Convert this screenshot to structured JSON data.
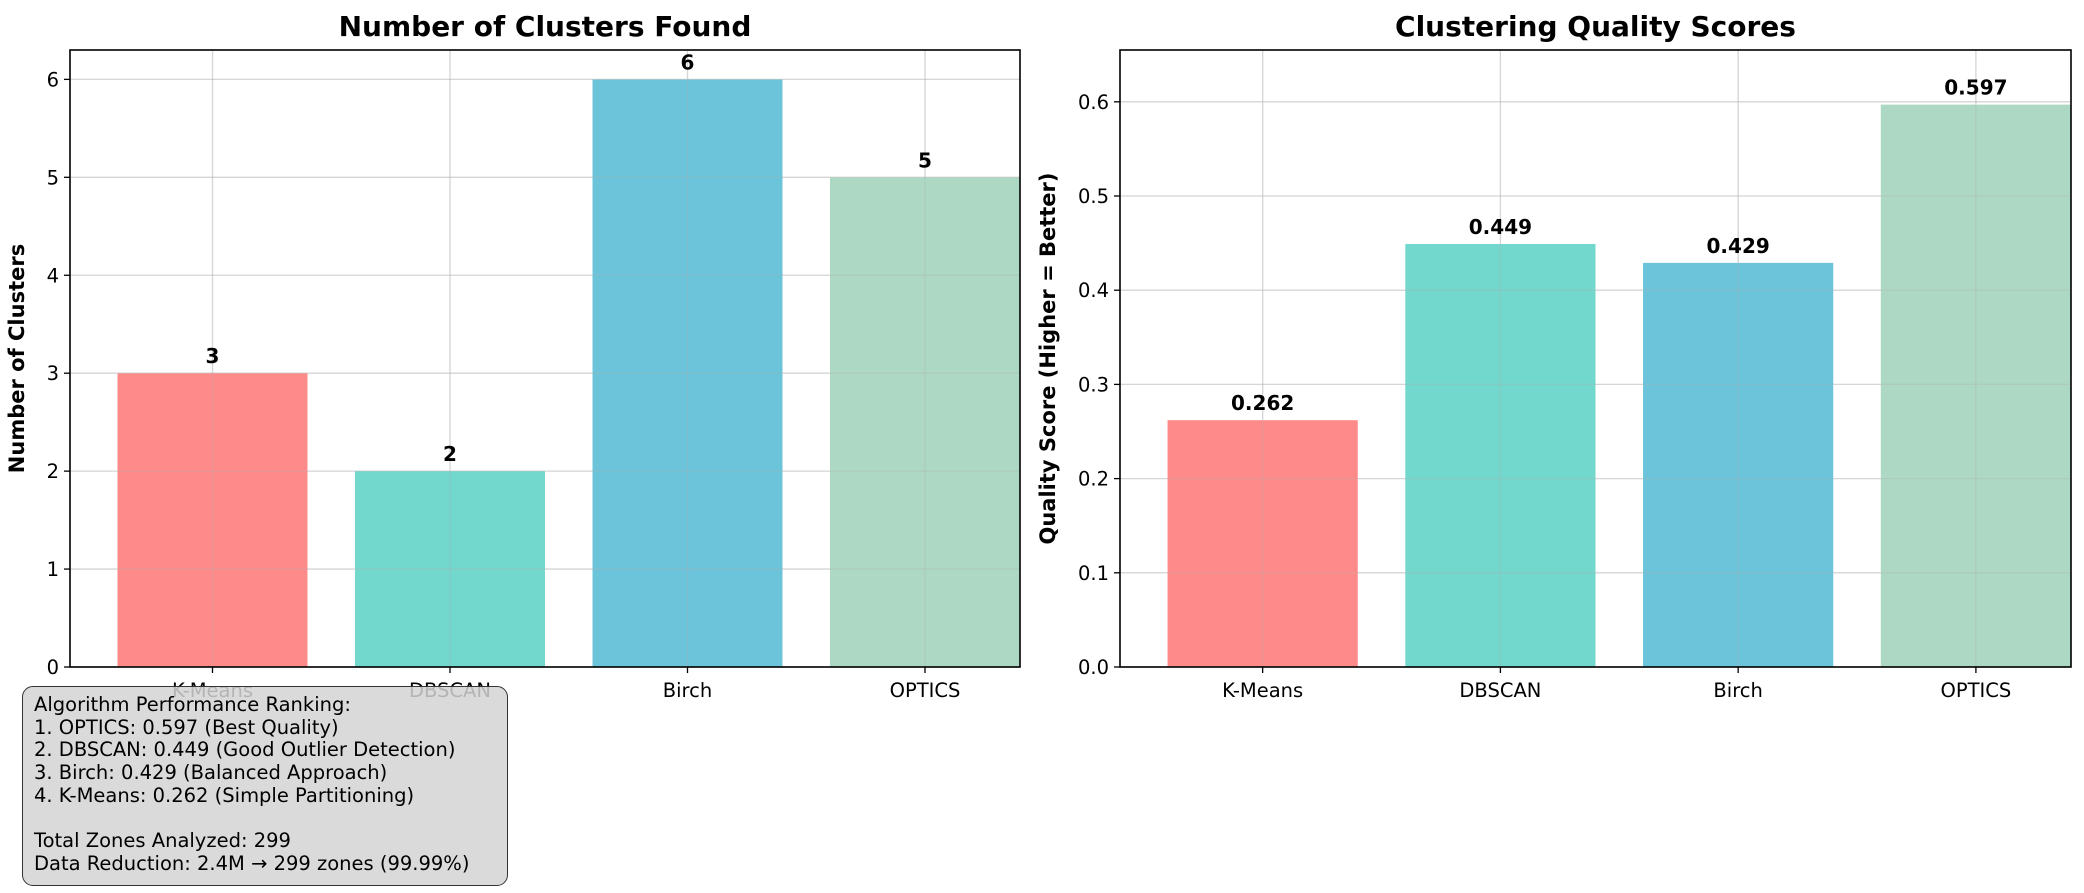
{
  "chart_data": [
    {
      "type": "bar",
      "title": "Number of Clusters Found",
      "xlabel": "",
      "ylabel": "Number of Clusters",
      "categories": [
        "K-Means",
        "DBSCAN",
        "Birch",
        "OPTICS"
      ],
      "values": [
        3,
        2,
        6,
        5
      ],
      "value_labels": [
        "3",
        "2",
        "6",
        "5"
      ],
      "colors": [
        "#ff8a8a",
        "#72d7cd",
        "#6bc4da",
        "#add8c3"
      ],
      "yticks": [
        "0",
        "1",
        "2",
        "3",
        "4",
        "5",
        "6"
      ],
      "ylim": [
        0,
        6.3
      ],
      "grid": true
    },
    {
      "type": "bar",
      "title": "Clustering Quality Scores",
      "xlabel": "",
      "ylabel": "Quality Score (Higher = Better)",
      "categories": [
        "K-Means",
        "DBSCAN",
        "Birch",
        "OPTICS"
      ],
      "values": [
        0.262,
        0.449,
        0.429,
        0.597
      ],
      "value_labels": [
        "0.262",
        "0.449",
        "0.429",
        "0.597"
      ],
      "colors": [
        "#ff8a8a",
        "#72d7cd",
        "#6bc4da",
        "#add8c3"
      ],
      "yticks": [
        "0.0",
        "0.1",
        "0.2",
        "0.3",
        "0.4",
        "0.5",
        "0.6"
      ],
      "ylim": [
        0,
        0.655
      ],
      "grid": true
    }
  ],
  "ranking_box": {
    "lines": [
      "Algorithm Performance Ranking:",
      "1. OPTICS: 0.597 (Best Quality)",
      "2. DBSCAN: 0.449 (Good Outlier Detection)",
      "3. Birch: 0.429 (Balanced Approach)",
      "4. K-Means: 0.262 (Simple Partitioning)",
      "",
      "Total Zones Analyzed: 299",
      "Data Reduction: 2.4M → 299 zones (99.99%)"
    ]
  }
}
